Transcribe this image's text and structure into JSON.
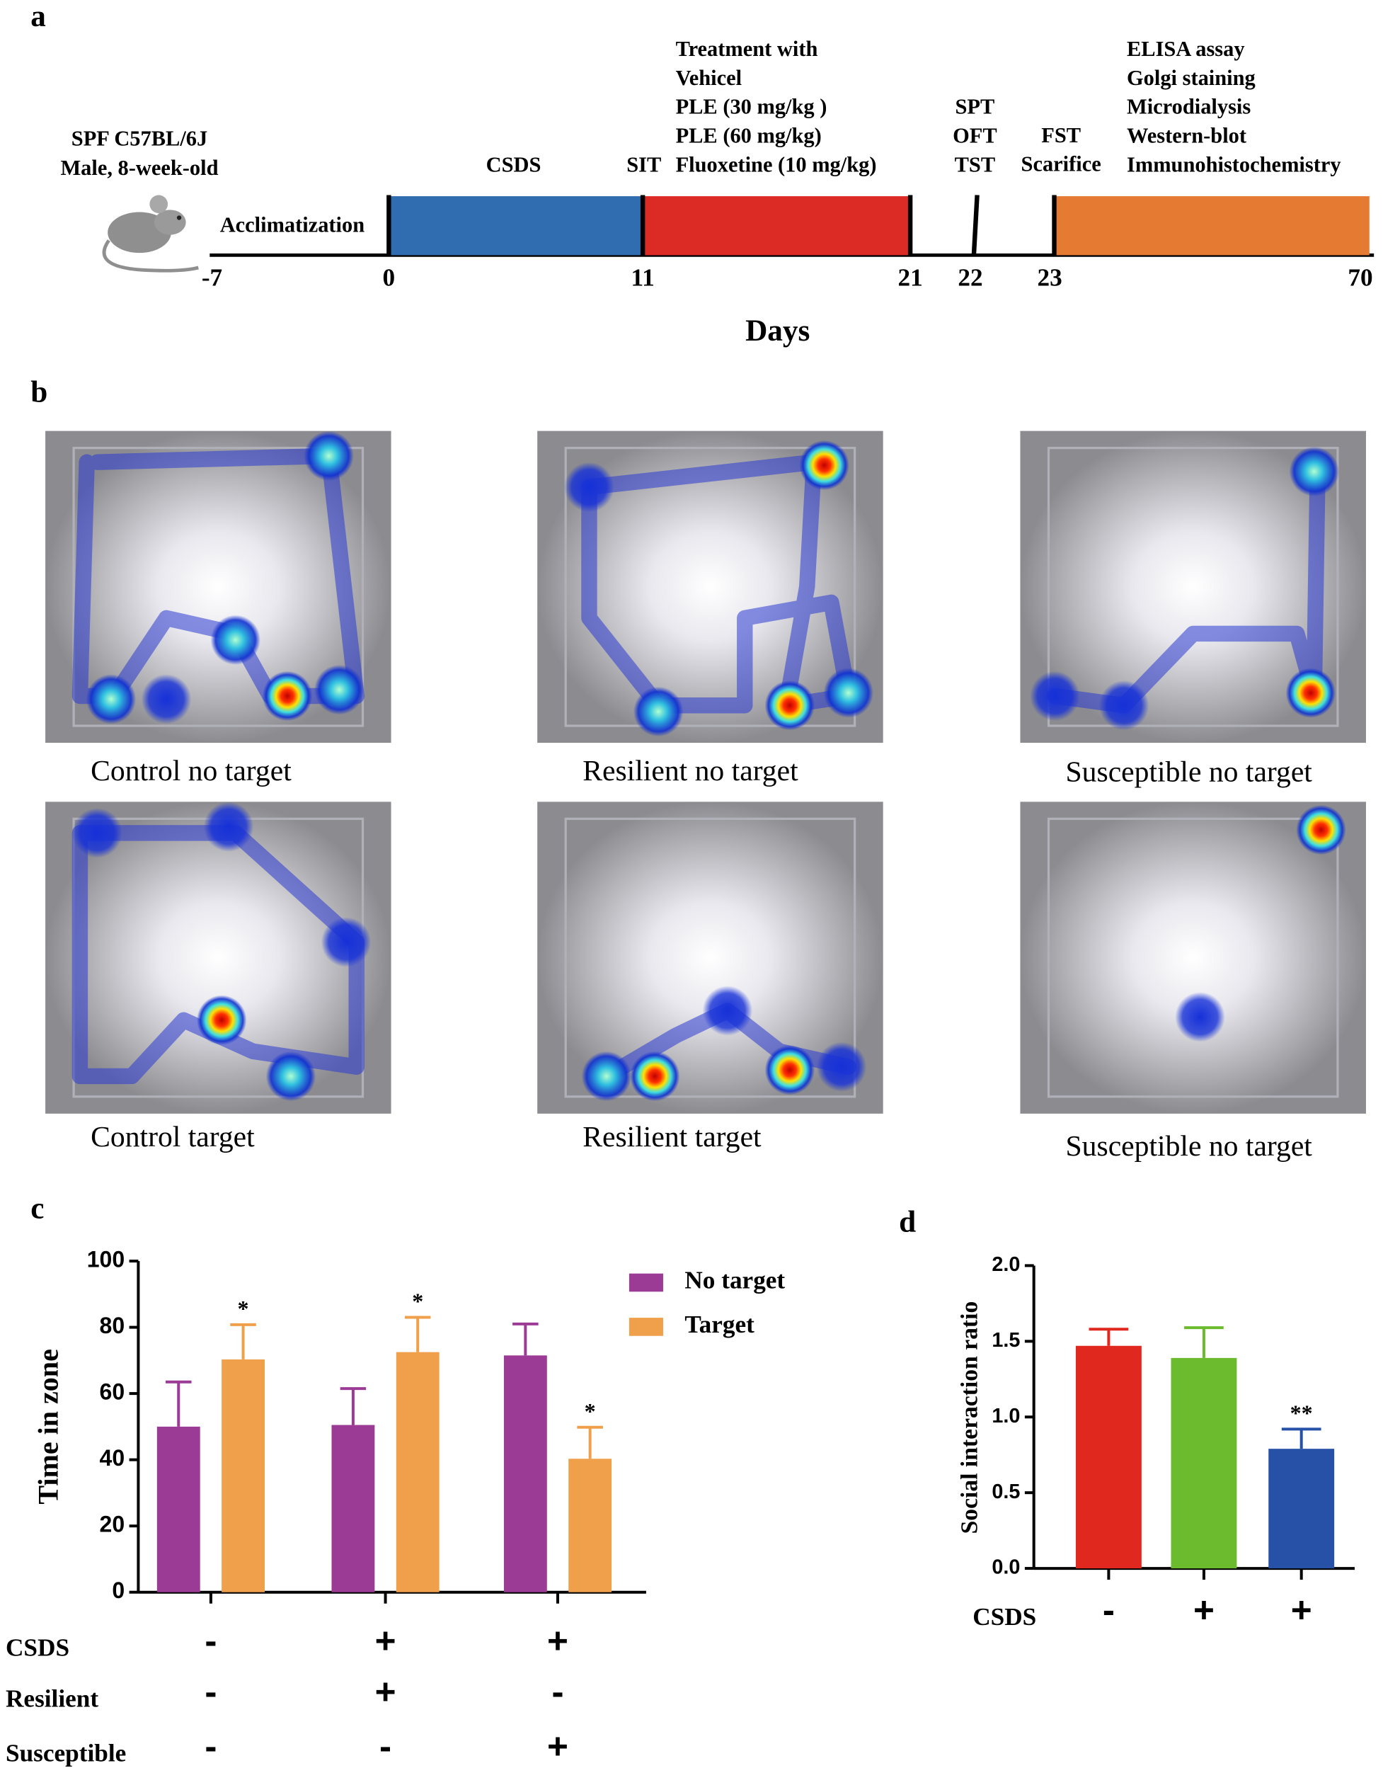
{
  "panel_labels": [
    "a",
    "b",
    "c",
    "d"
  ],
  "timeline": {
    "subject": [
      "SPF C57BL/6J",
      "Male, 8-week-old"
    ],
    "acclimatization": "Acclimatization",
    "stages": [
      {
        "lines": [
          "CSDS"
        ],
        "color": "#2f6db0"
      },
      {
        "lines": [
          "Treatment with",
          "Vehicel",
          "PLE (30 mg/kg )",
          "PLE (60 mg/kg)",
          "Fluoxetine (10 mg/kg)"
        ],
        "color": "#dc2a25"
      },
      {
        "lines": [
          "ELISA assay",
          "Golgi staining",
          "Microdialysis",
          "Western-blot",
          "Immunohistochemistry"
        ],
        "color": "#e57a33"
      }
    ],
    "markers": [
      {
        "lines": [
          "SIT"
        ]
      },
      {
        "lines": [
          "SPT",
          "OFT",
          "TST"
        ]
      },
      {
        "lines": [
          "FST",
          "Scarifice"
        ]
      }
    ],
    "day_labels": [
      "-7",
      "0",
      "11",
      "21",
      "22",
      "23",
      "70"
    ],
    "axis_title": "Days"
  },
  "heatmaps": [
    {
      "caption": "Control no target"
    },
    {
      "caption": "Resilient no target"
    },
    {
      "caption": "Susceptible no target"
    },
    {
      "caption": "Control target"
    },
    {
      "caption": "Resilient target"
    },
    {
      "caption": "Susceptible no target"
    }
  ],
  "chart_data": [
    {
      "type": "bar",
      "y_label": "Time in zone",
      "ylim": [
        0,
        100
      ],
      "yticks": [
        0,
        20,
        40,
        60,
        80,
        100
      ],
      "series": [
        {
          "name": "No target",
          "color": "#9b3b95",
          "values": [
            50,
            50.5,
            71.5
          ],
          "errors": [
            13.5,
            11,
            9.5
          ],
          "sig_labels": [
            null,
            null,
            null
          ]
        },
        {
          "name": "Target",
          "color": "#f0a04b",
          "values": [
            70.3,
            72.5,
            40.3
          ],
          "errors": [
            10.5,
            10.5,
            9.5
          ],
          "sig_labels": [
            "*",
            "*",
            "*"
          ]
        }
      ],
      "row_labels": [
        "CSDS",
        "Resilient",
        "Susceptible"
      ],
      "rows": [
        [
          "-",
          "+",
          "+"
        ],
        [
          "-",
          "+",
          "-"
        ],
        [
          "-",
          "-",
          "+"
        ]
      ]
    },
    {
      "type": "bar",
      "y_label": "Social interaction ratio",
      "ylim": [
        0,
        2
      ],
      "yticks": [
        {
          "value": 0,
          "label": "0.0"
        },
        0.5,
        {
          "value": 1,
          "label": "1.0"
        },
        1.5,
        {
          "value": 2,
          "label": "2.0"
        }
      ],
      "colors": [
        "#e0281f",
        "#6cbb2f",
        "#2651a6"
      ],
      "values": [
        1.47,
        1.39,
        0.79
      ],
      "errors": [
        0.11,
        0.2,
        0.13
      ],
      "sig_labels": [
        null,
        null,
        "**"
      ],
      "row_labels": [
        "CSDS"
      ],
      "rows": [
        [
          "-",
          "+",
          "+"
        ]
      ]
    }
  ]
}
